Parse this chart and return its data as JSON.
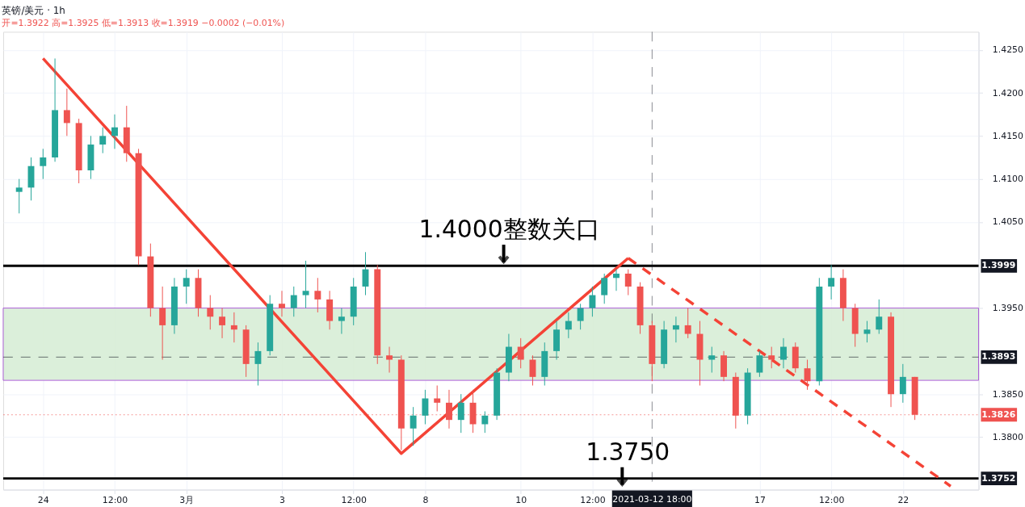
{
  "chart_data": {
    "type": "candlestick",
    "title": "英镑/美元 · 1h",
    "subtitle": "开=1.3922 高=1.3925 低=1.3913 收=1.3919 −0.0002 (−0.01%)",
    "categories": [
      null,
      null,
      "24",
      null,
      null,
      null,
      null,
      null,
      "12:00",
      null,
      null,
      null,
      null,
      null,
      "3月",
      null,
      null,
      null,
      null,
      null,
      null,
      null,
      "3",
      null,
      null,
      null,
      null,
      null,
      "12:00",
      null,
      null,
      null,
      null,
      null,
      "8",
      null,
      null,
      null,
      null,
      null,
      null,
      null,
      "10",
      null,
      null,
      null,
      null,
      null,
      "12:00",
      null,
      null,
      null,
      null,
      "2021-03-12 18:00",
      null,
      null,
      null,
      null,
      null,
      null,
      null,
      null,
      "17",
      null,
      null,
      null,
      null,
      null,
      "12:00",
      null,
      null,
      null,
      null,
      null,
      "22",
      null,
      null,
      null,
      null
    ],
    "ohlc": [
      [
        1.4085,
        1.41,
        1.406,
        1.409
      ],
      [
        1.409,
        1.4125,
        1.4075,
        1.4115
      ],
      [
        1.4115,
        1.4135,
        1.41,
        1.4125
      ],
      [
        1.4125,
        1.424,
        1.412,
        1.418
      ],
      [
        1.418,
        1.4205,
        1.415,
        1.4165
      ],
      [
        1.4165,
        1.417,
        1.4095,
        1.411
      ],
      [
        1.411,
        1.415,
        1.41,
        1.414
      ],
      [
        1.414,
        1.416,
        1.413,
        1.415
      ],
      [
        1.415,
        1.4175,
        1.4135,
        1.416
      ],
      [
        1.416,
        1.4185,
        1.412,
        1.413
      ],
      [
        1.413,
        1.4135,
        1.4,
        1.401
      ],
      [
        1.401,
        1.4025,
        1.394,
        1.395
      ],
      [
        1.395,
        1.3975,
        1.389,
        1.393
      ],
      [
        1.393,
        1.3985,
        1.392,
        1.3975
      ],
      [
        1.3975,
        1.3995,
        1.3955,
        1.3985
      ],
      [
        1.3985,
        1.3995,
        1.394,
        1.395
      ],
      [
        1.395,
        1.3965,
        1.3925,
        1.394
      ],
      [
        1.394,
        1.395,
        1.3915,
        1.393
      ],
      [
        1.393,
        1.3945,
        1.391,
        1.3925
      ],
      [
        1.3925,
        1.393,
        1.387,
        1.3885
      ],
      [
        1.3885,
        1.391,
        1.386,
        1.39
      ],
      [
        1.39,
        1.3965,
        1.3895,
        1.3955
      ],
      [
        1.3955,
        1.397,
        1.394,
        1.395
      ],
      [
        1.395,
        1.3975,
        1.394,
        1.3965
      ],
      [
        1.3965,
        1.4005,
        1.395,
        1.397
      ],
      [
        1.397,
        1.3985,
        1.3945,
        1.396
      ],
      [
        1.396,
        1.397,
        1.3925,
        1.3935
      ],
      [
        1.3935,
        1.395,
        1.392,
        1.394
      ],
      [
        1.394,
        1.3985,
        1.393,
        1.3975
      ],
      [
        1.3975,
        1.4015,
        1.3965,
        1.3995
      ],
      [
        1.3995,
        1.4,
        1.3885,
        1.3895
      ],
      [
        1.3895,
        1.3905,
        1.3875,
        1.389
      ],
      [
        1.389,
        1.3895,
        1.3785,
        1.381
      ],
      [
        1.381,
        1.3835,
        1.379,
        1.3825
      ],
      [
        1.3825,
        1.3855,
        1.3815,
        1.3845
      ],
      [
        1.3845,
        1.386,
        1.383,
        1.384
      ],
      [
        1.384,
        1.3855,
        1.381,
        1.382
      ],
      [
        1.382,
        1.385,
        1.3805,
        1.384
      ],
      [
        1.384,
        1.3855,
        1.3805,
        1.3815
      ],
      [
        1.3815,
        1.383,
        1.3805,
        1.3825
      ],
      [
        1.3825,
        1.388,
        1.382,
        1.3875
      ],
      [
        1.3875,
        1.392,
        1.3865,
        1.3905
      ],
      [
        1.3905,
        1.3915,
        1.388,
        1.389
      ],
      [
        1.389,
        1.3895,
        1.386,
        1.387
      ],
      [
        1.387,
        1.391,
        1.386,
        1.39
      ],
      [
        1.39,
        1.3935,
        1.389,
        1.3925
      ],
      [
        1.3925,
        1.3945,
        1.3915,
        1.3935
      ],
      [
        1.3935,
        1.3955,
        1.3925,
        1.395
      ],
      [
        1.395,
        1.3975,
        1.394,
        1.3965
      ],
      [
        1.3965,
        1.399,
        1.3955,
        1.3985
      ],
      [
        1.3985,
        1.3995,
        1.397,
        1.399
      ],
      [
        1.399,
        1.3995,
        1.3965,
        1.3975
      ],
      [
        1.3975,
        1.398,
        1.392,
        1.393
      ],
      [
        1.393,
        1.3935,
        1.3865,
        1.3885
      ],
      [
        1.3885,
        1.3935,
        1.388,
        1.3925
      ],
      [
        1.3925,
        1.394,
        1.391,
        1.393
      ],
      [
        1.393,
        1.395,
        1.3915,
        1.392
      ],
      [
        1.392,
        1.3935,
        1.386,
        1.389
      ],
      [
        1.389,
        1.3905,
        1.3875,
        1.3895
      ],
      [
        1.3895,
        1.39,
        1.3865,
        1.387
      ],
      [
        1.387,
        1.3875,
        1.381,
        1.3825
      ],
      [
        1.3825,
        1.388,
        1.3815,
        1.3875
      ],
      [
        1.3875,
        1.39,
        1.387,
        1.3895
      ],
      [
        1.3895,
        1.3905,
        1.388,
        1.389
      ],
      [
        1.389,
        1.3915,
        1.388,
        1.3905
      ],
      [
        1.3905,
        1.391,
        1.3875,
        1.388
      ],
      [
        1.388,
        1.389,
        1.3855,
        1.3865
      ],
      [
        1.3865,
        1.3985,
        1.386,
        1.3975
      ],
      [
        1.3975,
        1.4,
        1.396,
        1.3985
      ],
      [
        1.3985,
        1.3995,
        1.3935,
        1.395
      ],
      [
        1.395,
        1.3955,
        1.3905,
        1.392
      ],
      [
        1.392,
        1.3935,
        1.391,
        1.3925
      ],
      [
        1.3925,
        1.396,
        1.392,
        1.394
      ],
      [
        1.394,
        1.3945,
        1.3835,
        1.385
      ],
      [
        1.385,
        1.3885,
        1.384,
        1.387
      ],
      [
        1.387,
        1.387,
        1.382,
        1.3826
      ],
      null,
      null,
      null
    ],
    "colors": [
      "#26a69a",
      "#26a69a",
      "#26a69a",
      "#26a69a",
      "#ef5350",
      "#ef5350",
      "#26a69a",
      "#26a69a",
      "#26a69a",
      "#ef5350",
      "#ef5350",
      "#ef5350",
      "#ef5350",
      "#26a69a",
      "#26a69a",
      "#ef5350",
      "#ef5350",
      "#ef5350",
      "#ef5350",
      "#ef5350",
      "#26a69a",
      "#26a69a",
      "#ef5350",
      "#26a69a",
      "#26a69a",
      "#ef5350",
      "#ef5350",
      "#26a69a",
      "#26a69a",
      "#26a69a",
      "#ef5350",
      "#ef5350",
      "#ef5350",
      "#26a69a",
      "#26a69a",
      "#ef5350",
      "#ef5350",
      "#26a69a",
      "#ef5350",
      "#26a69a",
      "#26a69a",
      "#26a69a",
      "#ef5350",
      "#ef5350",
      "#26a69a",
      "#26a69a",
      "#26a69a",
      "#26a69a",
      "#26a69a",
      "#26a69a",
      "#26a69a",
      "#ef5350",
      "#ef5350",
      "#ef5350",
      "#26a69a",
      "#26a69a",
      "#ef5350",
      "#ef5350",
      "#26a69a",
      "#ef5350",
      "#ef5350",
      "#26a69a",
      "#26a69a",
      "#ef5350",
      "#26a69a",
      "#ef5350",
      "#ef5350",
      "#26a69a",
      "#26a69a",
      "#ef5350",
      "#ef5350",
      "#26a69a",
      "#26a69a",
      "#ef5350",
      "#26a69a",
      "#ef5350",
      null,
      null,
      null
    ],
    "series": [
      {
        "type": "line",
        "color": "#f44336",
        "line_style": "solid",
        "values": [
          null,
          null,
          1.424,
          null,
          null,
          null,
          null,
          null,
          null,
          null,
          null,
          null,
          null,
          null,
          null,
          null,
          null,
          null,
          null,
          null,
          null,
          null,
          null,
          null,
          null,
          null,
          null,
          null,
          null,
          null,
          null,
          null,
          1.3781,
          null,
          null,
          null,
          null,
          null,
          null,
          null,
          null,
          null,
          null,
          null,
          null,
          null,
          null,
          null,
          null,
          null,
          null,
          1.4008,
          null,
          null,
          null,
          null,
          null,
          null,
          null,
          null,
          null,
          null,
          null,
          null,
          null,
          null,
          null,
          null,
          null,
          null,
          null,
          null,
          null,
          null,
          null,
          null,
          null,
          null,
          null
        ]
      },
      {
        "type": "line",
        "color": "#f44336",
        "line_style": "dashed",
        "values": [
          null,
          null,
          null,
          null,
          null,
          null,
          null,
          null,
          null,
          null,
          null,
          null,
          null,
          null,
          null,
          null,
          null,
          null,
          null,
          null,
          null,
          null,
          null,
          null,
          null,
          null,
          null,
          null,
          null,
          null,
          null,
          null,
          null,
          null,
          null,
          null,
          null,
          null,
          null,
          null,
          null,
          null,
          null,
          null,
          null,
          null,
          null,
          null,
          null,
          null,
          null,
          1.4008,
          null,
          null,
          null,
          null,
          null,
          null,
          null,
          null,
          null,
          null,
          null,
          null,
          null,
          null,
          null,
          null,
          null,
          null,
          null,
          null,
          null,
          null,
          null,
          null,
          null,
          null,
          1.3743
        ]
      }
    ],
    "ylim": [
      1.3739,
      1.4271
    ],
    "yticks": [
      {
        "value": 1.38,
        "label": "1.3800"
      },
      {
        "value": 1.385,
        "label": "1.3850"
      },
      {
        "value": 1.395,
        "label": "1.3950"
      },
      {
        "value": 1.405,
        "label": "1.4050"
      },
      {
        "value": 1.41,
        "label": "1.4100"
      },
      {
        "value": 1.415,
        "label": "1.4150"
      },
      {
        "value": 1.42,
        "label": "1.4200"
      },
      {
        "value": 1.425,
        "label": "1.4250"
      }
    ],
    "grid": true,
    "ref_lines": [
      {
        "axis": "y",
        "value": 1.3999,
        "label": "1.3999",
        "color": "#000000",
        "line_style": "solid"
      },
      {
        "axis": "y",
        "value": 1.3752,
        "label": "1.3752",
        "color": "#000000",
        "line_style": "solid"
      },
      {
        "axis": "y",
        "value": 1.3893,
        "label": "1.3893",
        "color": "#131722",
        "line_style": "dashed"
      },
      {
        "axis": "y",
        "value": 1.3826,
        "label": "1.3826",
        "color": "#ef5350",
        "line_style": "dotted"
      },
      {
        "axis": "x",
        "value": "2021-03-12 18:00",
        "label": "2021-03-12 18:00",
        "color": "#131722",
        "line_style": "dashed"
      }
    ],
    "bands": [
      {
        "axis": "y",
        "from": 1.3866,
        "to": 1.395,
        "color": "#d8eed6"
      }
    ],
    "annotations": [
      "1.4000整数关口",
      "1.3750"
    ]
  }
}
